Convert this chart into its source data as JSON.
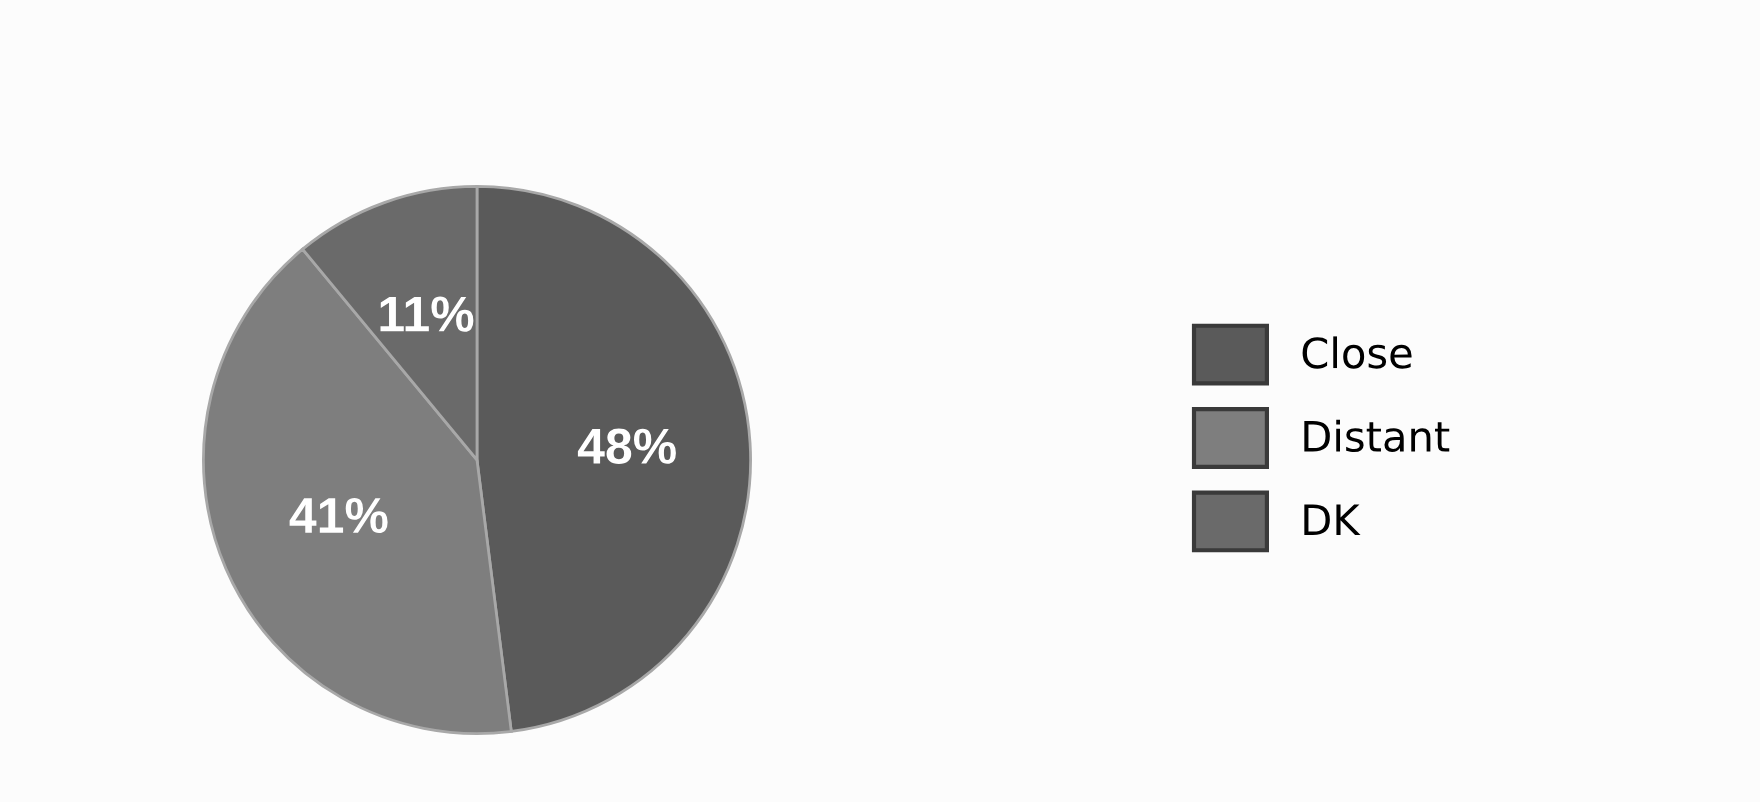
{
  "chart_data": {
    "type": "pie",
    "categories": [
      "Close",
      "Distant",
      "DK"
    ],
    "values": [
      48,
      41,
      11
    ],
    "colors": [
      "#5a5a5a",
      "#7e7e7e",
      "#6a6a6a"
    ],
    "value_labels": [
      "48%",
      "41%",
      "11%"
    ],
    "legend": "right"
  }
}
